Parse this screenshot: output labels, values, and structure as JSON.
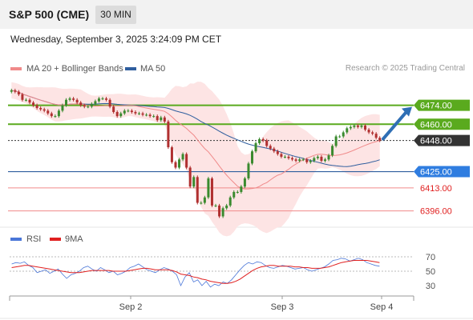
{
  "header": {
    "title": "S&P 500 (CME)",
    "timeframe": "30 MIN"
  },
  "datetime": "Wednesday, September 3, 2025 3:24:09 PM CET",
  "legend": {
    "ma20": {
      "label": "MA 20 + Bollinger Bands",
      "color": "#f08a8a"
    },
    "ma50": {
      "label": "MA 50",
      "color": "#2f5e9e"
    }
  },
  "credit": "Research © 2025 Trading Central",
  "rsi_legend": {
    "rsi": {
      "label": "RSI",
      "color": "#4a76d8"
    },
    "ma9": {
      "label": "9MA",
      "color": "#e02020"
    }
  },
  "chart_data": [
    {
      "type": "candlestick",
      "x_labels": [
        "Sep 2",
        "Sep 3",
        "Sep 4"
      ],
      "ylim": [
        6384,
        6495
      ],
      "close_values": [
        6485,
        6484,
        6482,
        6478,
        6478,
        6476,
        6474,
        6472,
        6471,
        6470,
        6468,
        6466,
        6466,
        6470,
        6474,
        6478,
        6479,
        6478,
        6476,
        6474,
        6473,
        6473,
        6475,
        6477,
        6479,
        6479,
        6478,
        6473,
        6469,
        6466,
        6468,
        6470,
        6470,
        6469,
        6468,
        6468,
        6467,
        6467,
        6466,
        6466,
        6463,
        6465,
        6462,
        6443,
        6432,
        6428,
        6434,
        6438,
        6428,
        6414,
        6421,
        6402,
        6402,
        6406,
        6420,
        6400,
        6400,
        6392,
        6398,
        6400,
        6406,
        6410,
        6410,
        6414,
        6420,
        6431,
        6440,
        6446,
        6449,
        6448,
        6444,
        6442,
        6440,
        6438,
        6436,
        6436,
        6435,
        6434,
        6433,
        6434,
        6434,
        6432,
        6433,
        6435,
        6436,
        6433,
        6434,
        6437,
        6444,
        6451,
        6451,
        6454,
        6457,
        6458,
        6459,
        6458,
        6459,
        6456,
        6454,
        6453,
        6450,
        6448
      ],
      "levels": [
        {
          "value": "6474.00",
          "color": "#5aaa1e",
          "label_bg": "#5aaa1e",
          "label_color": "#ffffff"
        },
        {
          "value": "6460.00",
          "color": "#5aaa1e",
          "label_bg": "#5aaa1e",
          "label_color": "#ffffff"
        },
        {
          "value": "6448.00",
          "color": "#333333",
          "label_bg": "#333333",
          "label_color": "#ffffff"
        },
        {
          "value": "6425.00",
          "color": "#2f5e9e",
          "label_bg": "#2f7de0",
          "label_color": "#ffffff"
        },
        {
          "value": "6413.00",
          "color": "#f08a8a",
          "label_bg": "",
          "label_color": "#e02020"
        },
        {
          "value": "6396.00",
          "color": "#f08a8a",
          "label_bg": "",
          "label_color": "#e02020"
        }
      ],
      "arrow": {
        "direction": "up",
        "color": "#2f6fb5"
      }
    },
    {
      "type": "line",
      "name": "RSI",
      "ylim": [
        20,
        80
      ],
      "y_ticks": [
        "70",
        "50",
        "30"
      ],
      "series": [
        {
          "name": "RSI",
          "color": "#4a76d8",
          "values": [
            60,
            62,
            61,
            63,
            58,
            55,
            48,
            50,
            52,
            47,
            50,
            53,
            46,
            40,
            45,
            47,
            50,
            55,
            57,
            53,
            50,
            55,
            52,
            48,
            50,
            45,
            47,
            50,
            55,
            57,
            60,
            56,
            52,
            50,
            48,
            52,
            55,
            53,
            50,
            45,
            30,
            42,
            48,
            35,
            38,
            30,
            36,
            28,
            32,
            30,
            35,
            33,
            38,
            45,
            52,
            58,
            62,
            60,
            63,
            62,
            58,
            55,
            54,
            56,
            58,
            57,
            55,
            53,
            54,
            55,
            52,
            50,
            52,
            54,
            56,
            60,
            65,
            66,
            68,
            67,
            64,
            66,
            68,
            66,
            62,
            60,
            58,
            57
          ]
        },
        {
          "name": "9MA",
          "color": "#e02020",
          "values": [
            55,
            56,
            57,
            58,
            58,
            57,
            56,
            55,
            54,
            53,
            52,
            51,
            50,
            49,
            48,
            48,
            48,
            49,
            50,
            51,
            51,
            51,
            51,
            51,
            50,
            50,
            50,
            50,
            51,
            52,
            53,
            54,
            54,
            53,
            52,
            52,
            52,
            52,
            51,
            49,
            46,
            45,
            44,
            42,
            41,
            39,
            38,
            36,
            35,
            34,
            33,
            33,
            34,
            36,
            39,
            43,
            47,
            51,
            54,
            56,
            57,
            58,
            58,
            57,
            57,
            57,
            57,
            56,
            56,
            55,
            55,
            54,
            54,
            54,
            55,
            56,
            58,
            60,
            62,
            63,
            64,
            65,
            65,
            65,
            65,
            64,
            63,
            62
          ]
        }
      ]
    }
  ]
}
